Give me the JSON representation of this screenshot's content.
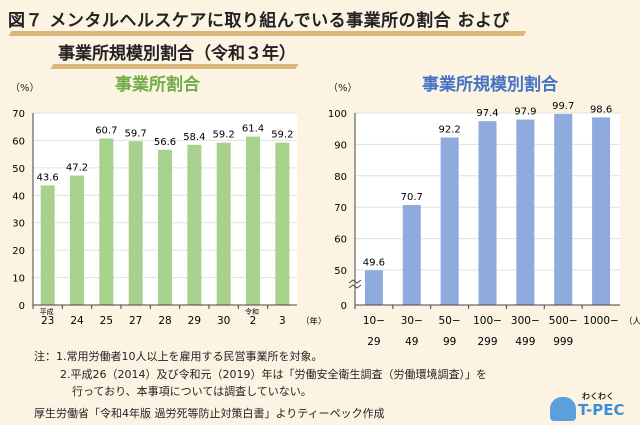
{
  "title_line1": "図７ メンタルヘルスケアに取り組んでいる事業所の割合 および",
  "title_line2": "事業所規模別割合（令和３年）",
  "chart_data": [
    {
      "type": "bar",
      "title": "事業所割合",
      "ylabel": "（%）",
      "ylim": [
        0,
        70
      ],
      "yticks": [
        0,
        10,
        20,
        30,
        40,
        50,
        60,
        70
      ],
      "era_labels": {
        "0": "平成",
        "7": "令和"
      },
      "categories": [
        "23",
        "24",
        "25",
        "27",
        "28",
        "29",
        "30",
        "2",
        "3"
      ],
      "xunit": "（年）",
      "values": [
        43.6,
        47.2,
        60.7,
        59.7,
        56.6,
        58.4,
        59.2,
        61.4,
        59.2
      ],
      "color": "#a9d18e",
      "title_color": "#70ad47",
      "grid": true
    },
    {
      "type": "bar",
      "title": "事業所規模別割合",
      "ylabel": "（%）",
      "ylim": [
        0,
        100
      ],
      "yticks": [
        0,
        50,
        60,
        70,
        80,
        90,
        100
      ],
      "axis_break": [
        0,
        50
      ],
      "categories": [
        [
          "10−",
          "29"
        ],
        [
          "30−",
          "49"
        ],
        [
          "50−",
          "99"
        ],
        [
          "100−",
          "299"
        ],
        [
          "300−",
          "499"
        ],
        [
          "500−",
          "999"
        ],
        [
          "1000−",
          ""
        ]
      ],
      "xunit": "（人）",
      "values": [
        49.6,
        70.7,
        92.2,
        97.4,
        97.9,
        99.7,
        98.6
      ],
      "color": "#8faadc",
      "title_color": "#4472c4",
      "grid": true
    }
  ],
  "notes": [
    "注：1.常用労働者10人以上を雇用する民営事業所を対象。",
    "2.平成26（2014）及び令和元（2019）年は「労働安全衛生調査（労働環境調査）」を",
    "行っており、本事項については調査していない。"
  ],
  "source": "厚生労働省「令和4年版 過労死等防止対策白書」よりティーペック作成",
  "logo": {
    "text_top": "わくわく",
    "text_main": "T-PEC",
    "text_sub": "WORK×WORK"
  }
}
